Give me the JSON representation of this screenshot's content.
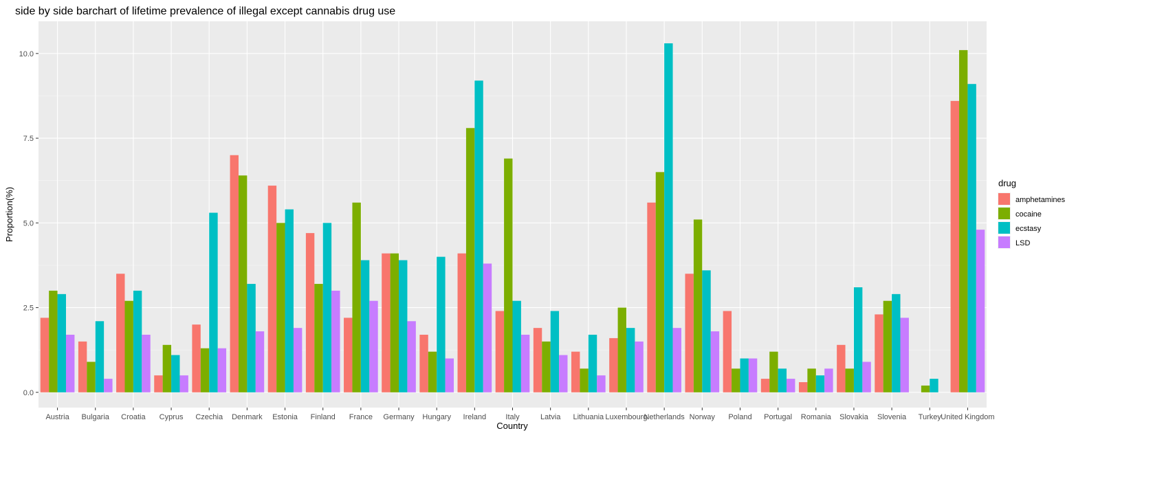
{
  "chart_data": {
    "type": "bar",
    "title": "side by side barchart of lifetime prevalence of illegal except cannabis drug use",
    "xlabel": "Country",
    "ylabel": "Proportion(%)",
    "ylim": [
      -0.45,
      10.95
    ],
    "yticks": [
      0.0,
      2.5,
      5.0,
      7.5,
      10.0
    ],
    "ytick_labels": [
      "0.0",
      "2.5",
      "5.0",
      "7.5",
      "10.0"
    ],
    "grid": true,
    "legend_title": "drug",
    "legend_position": "right",
    "categories": [
      "Austria",
      "Bulgaria",
      "Croatia",
      "Cyprus",
      "Czechia",
      "Denmark",
      "Estonia",
      "Finland",
      "France",
      "Germany",
      "Hungary",
      "Ireland",
      "Italy",
      "Latvia",
      "Lithuania",
      "Luxembourg",
      "Netherlands",
      "Norway",
      "Poland",
      "Portugal",
      "Romania",
      "Slovakia",
      "Slovenia",
      "Turkey",
      "United Kingdom"
    ],
    "series": [
      {
        "name": "amphetamines",
        "color": "#F8766D",
        "values": [
          2.2,
          1.5,
          3.5,
          0.5,
          2.0,
          7.0,
          6.1,
          4.7,
          2.2,
          4.1,
          1.7,
          4.1,
          2.4,
          1.9,
          1.2,
          1.6,
          5.6,
          3.5,
          2.4,
          0.4,
          0.3,
          1.4,
          2.3,
          null,
          8.6
        ]
      },
      {
        "name": "cocaine",
        "color": "#7CAE00",
        "values": [
          3.0,
          0.9,
          2.7,
          1.4,
          1.3,
          6.4,
          5.0,
          3.2,
          5.6,
          4.1,
          1.2,
          7.8,
          6.9,
          1.5,
          0.7,
          2.5,
          6.5,
          5.1,
          0.7,
          1.2,
          0.7,
          0.7,
          2.7,
          0.2,
          10.1
        ]
      },
      {
        "name": "ecstasy",
        "color": "#00BFC4",
        "values": [
          2.9,
          2.1,
          3.0,
          1.1,
          5.3,
          3.2,
          5.4,
          5.0,
          3.9,
          3.9,
          4.0,
          9.2,
          2.7,
          2.4,
          1.7,
          1.9,
          10.3,
          3.6,
          1.0,
          0.7,
          0.5,
          3.1,
          2.9,
          0.4,
          9.1
        ]
      },
      {
        "name": "LSD",
        "color": "#C77CFF",
        "values": [
          1.7,
          0.4,
          1.7,
          0.5,
          1.3,
          1.8,
          1.9,
          3.0,
          2.7,
          2.1,
          1.0,
          3.8,
          1.7,
          1.1,
          0.5,
          1.5,
          1.9,
          1.8,
          1.0,
          0.4,
          0.7,
          0.9,
          2.2,
          null,
          4.8
        ]
      }
    ]
  }
}
